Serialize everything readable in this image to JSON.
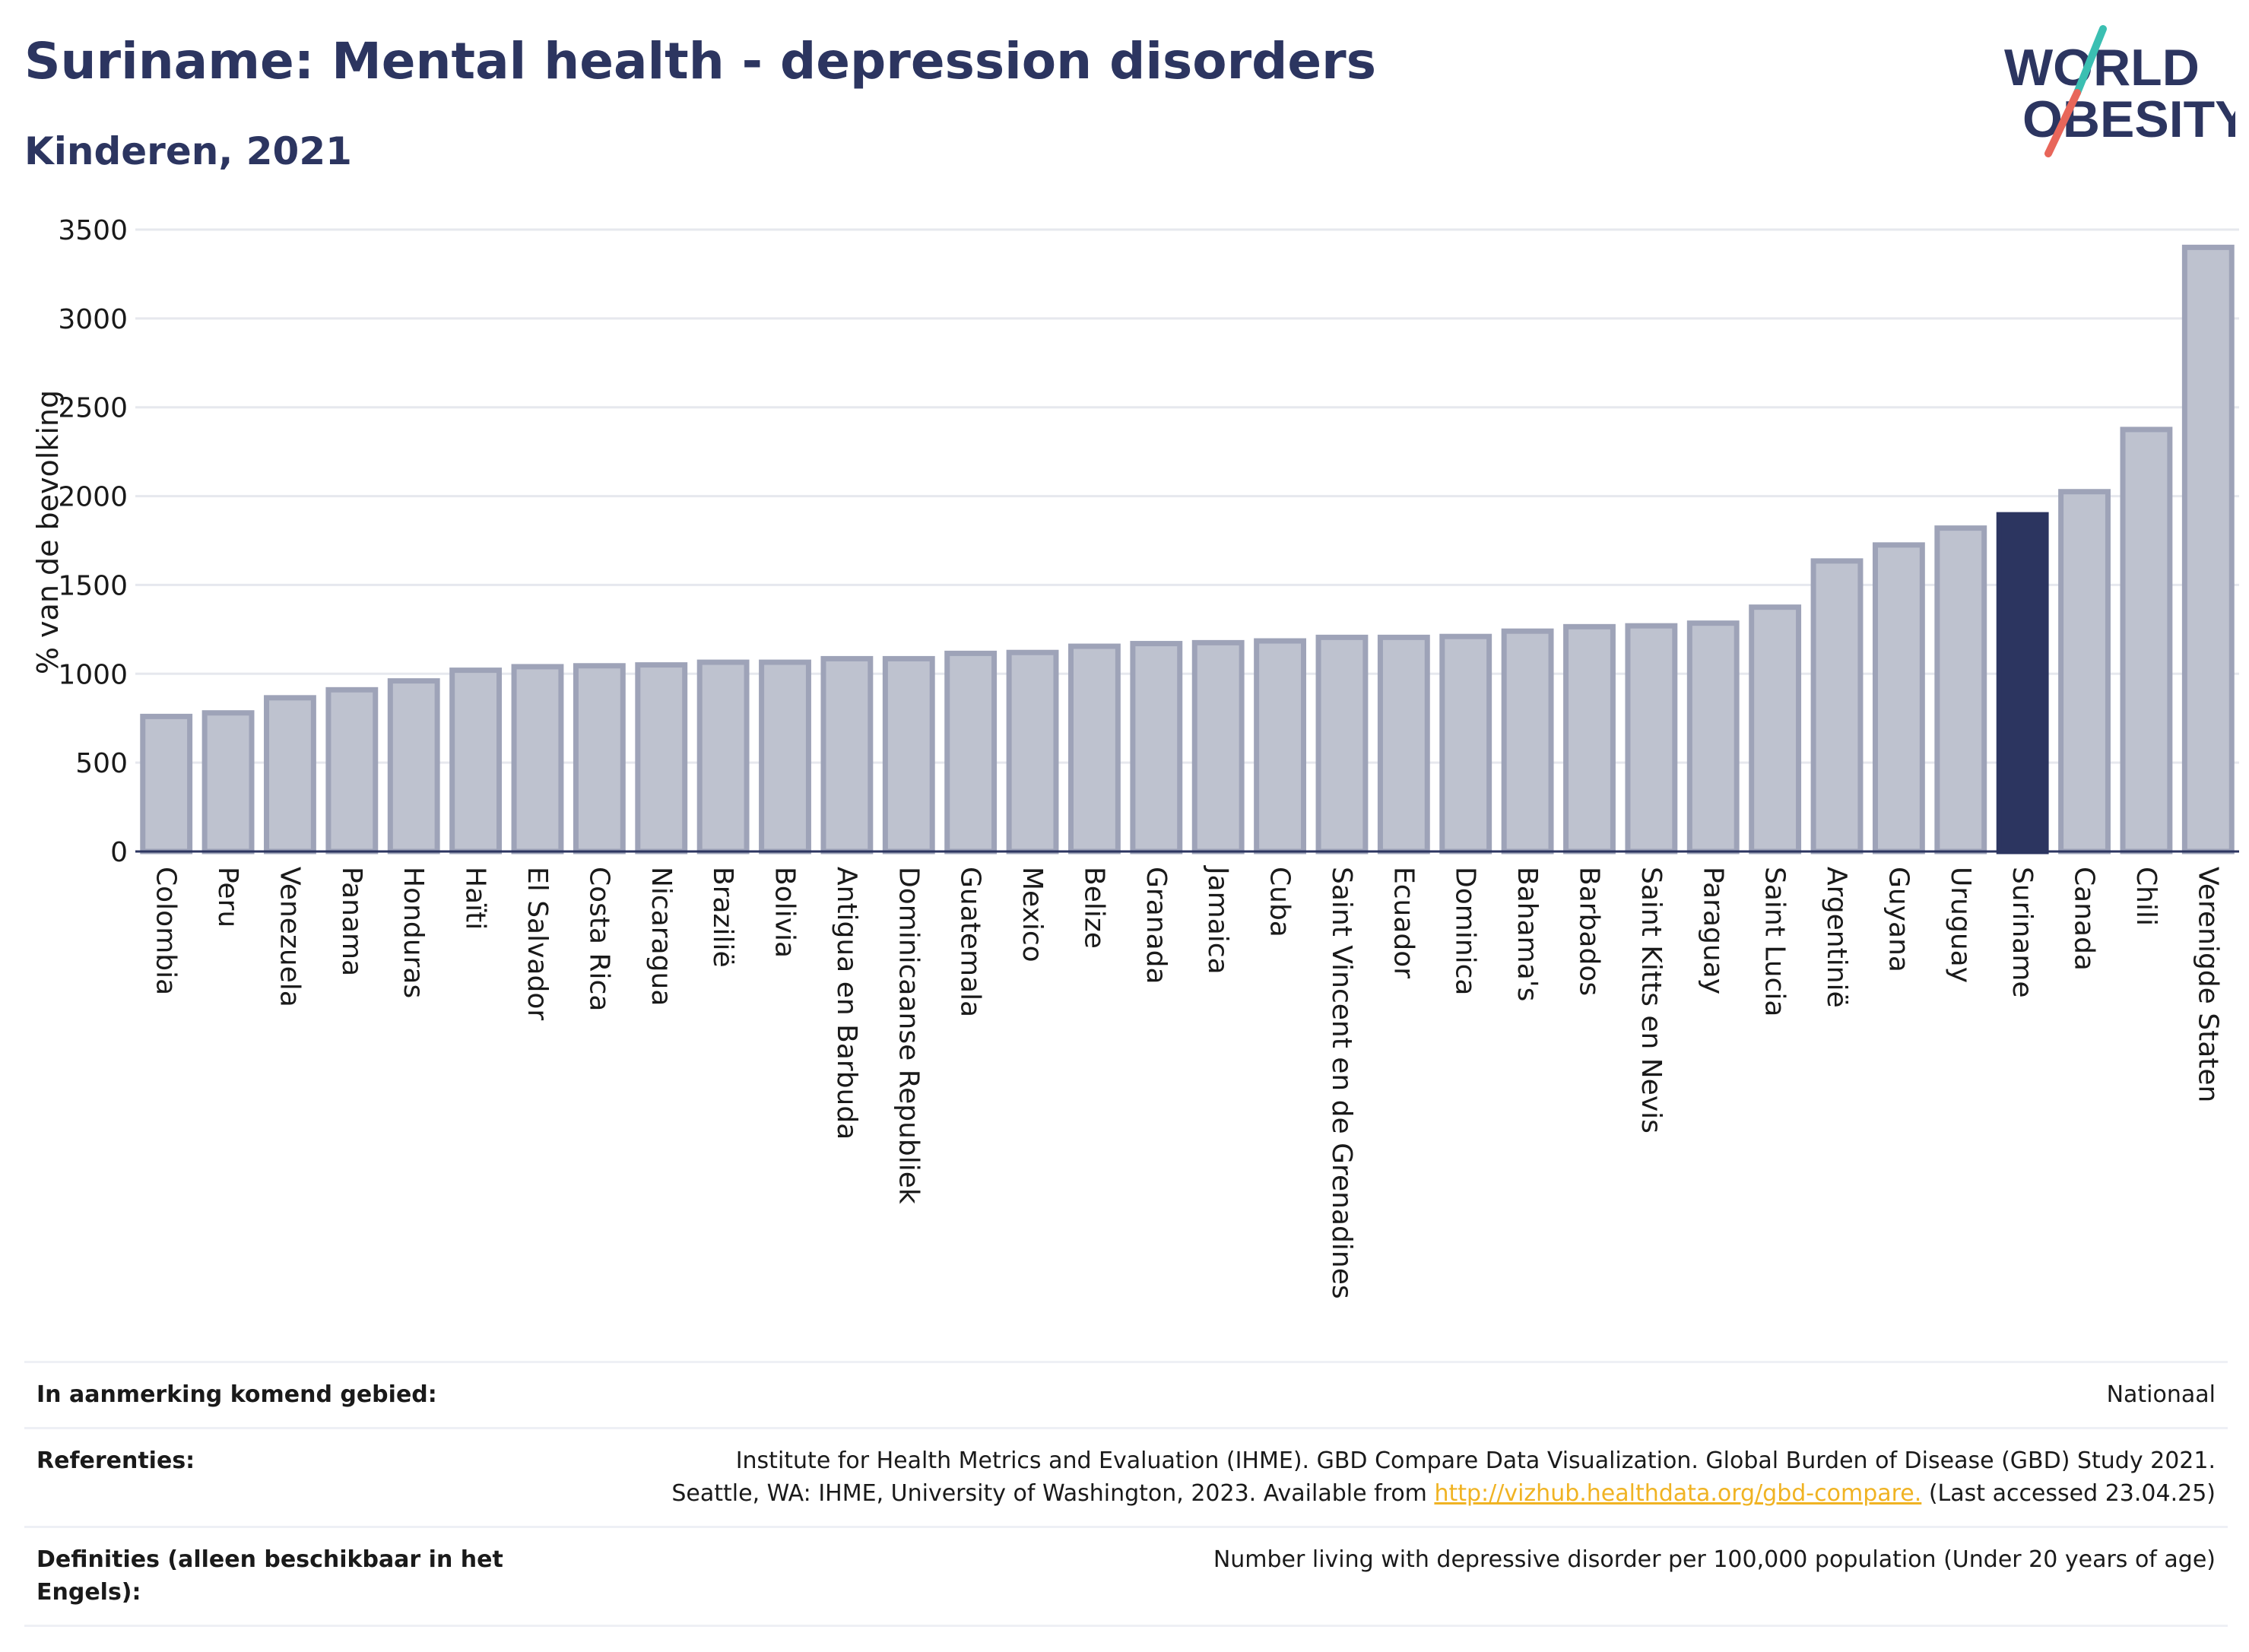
{
  "header": {
    "title": "Suriname: Mental health - depression disorders",
    "subtitle": "Kinderen, 2021"
  },
  "logo": {
    "line1": "WORLD",
    "line2": "OBESITY",
    "slash_colors": [
      "#3bbfb2",
      "#e8665a"
    ],
    "text_color": "#2c3560"
  },
  "colors": {
    "bar": "#bec2cf",
    "bar_border": "#9ea3b8",
    "highlight": "#2c3560",
    "grid": "#e6e8ee"
  },
  "chart_data": {
    "type": "bar",
    "title": "Suriname: Mental health - depression disorders",
    "subtitle": "Kinderen, 2021",
    "ylabel": "% van de bevolking",
    "ylim": [
      0,
      3500
    ],
    "yticks": [
      0,
      500,
      1000,
      1500,
      2000,
      2500,
      3000,
      3500
    ],
    "grid": true,
    "highlight": "Suriname",
    "categories": [
      "Colombia",
      "Peru",
      "Venezuela",
      "Panama",
      "Honduras",
      "Haïti",
      "El Salvador",
      "Costa Rica",
      "Nicaragua",
      "Brazilië",
      "Bolivia",
      "Antigua en Barbuda",
      "Dominicaanse Republiek",
      "Guatemala",
      "Mexico",
      "Belize",
      "Granada",
      "Jamaica",
      "Cuba",
      "Saint Vincent en de Grenadines",
      "Ecuador",
      "Dominica",
      "Bahama's",
      "Barbados",
      "Saint Kitts en Nevis",
      "Paraguay",
      "Saint Lucia",
      "Argentinië",
      "Guyana",
      "Uruguay",
      "Suriname",
      "Canada",
      "Chili",
      "Verenigde Staten"
    ],
    "values": [
      760,
      780,
      865,
      910,
      960,
      1020,
      1040,
      1045,
      1050,
      1065,
      1065,
      1085,
      1085,
      1115,
      1120,
      1155,
      1170,
      1175,
      1185,
      1205,
      1205,
      1210,
      1240,
      1265,
      1270,
      1285,
      1375,
      1635,
      1725,
      1820,
      1895,
      2025,
      2375,
      3400
    ]
  },
  "footer": {
    "rows": [
      {
        "label": "In aanmerking komend gebied:",
        "value": "Nationaal"
      },
      {
        "label": "Referenties:",
        "line1": "Institute for Health Metrics and Evaluation (IHME). GBD Compare Data Visualization. Global Burden of Disease (GBD) Study 2021.",
        "line2_before": "Seattle, WA: IHME, University of Washington, 2023. Available from ",
        "link": "http://vizhub.healthdata.org/gbd-compare.",
        "line2_after": " (Last accessed 23.04.25)"
      },
      {
        "label": "Definities (alleen beschikbaar in het Engels):",
        "value": "Number living with depressive disorder per 100,000 population (Under 20 years of age)"
      }
    ]
  }
}
